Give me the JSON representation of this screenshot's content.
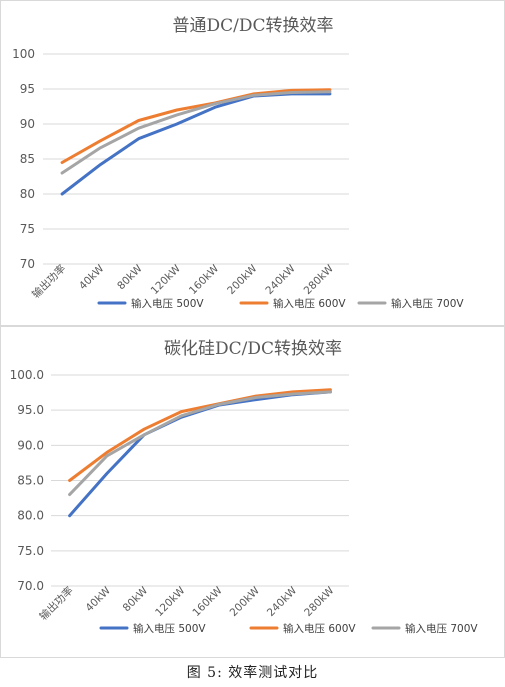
{
  "chart_data": [
    {
      "type": "line",
      "title": "普通DC/DC转换效率",
      "ylim": [
        70,
        100
      ],
      "yticks": [
        "100",
        "95",
        "90",
        "85",
        "80",
        "75",
        "70"
      ],
      "yticks_values": [
        100,
        95,
        90,
        85,
        80,
        75,
        70
      ],
      "categories": [
        "输出功率",
        "40kW",
        "80kW",
        "120kW",
        "160kW",
        "200kW",
        "240kW",
        "280kW"
      ],
      "legend_position": "bottom",
      "grid": true,
      "series": [
        {
          "name": "输入电压 500V",
          "color": "#4472C4",
          "values": [
            80.0,
            84.2,
            87.9,
            90.0,
            92.4,
            94.0,
            94.3,
            94.3
          ]
        },
        {
          "name": "输入电压 600V",
          "color": "#ED7D31",
          "values": [
            84.5,
            87.6,
            90.5,
            92.0,
            93.0,
            94.3,
            94.8,
            94.9
          ]
        },
        {
          "name": "输入电压 700V",
          "color": "#A5A5A5",
          "values": [
            83.0,
            86.6,
            89.4,
            91.3,
            92.9,
            94.1,
            94.5,
            94.6
          ]
        }
      ]
    },
    {
      "type": "line",
      "title": "碳化硅DC/DC转换效率",
      "ylim": [
        70,
        100
      ],
      "yticks": [
        "100.0",
        "95.0",
        "90.0",
        "85.0",
        "80.0",
        "75.0",
        "70.0"
      ],
      "yticks_values": [
        100,
        95,
        90,
        85,
        80,
        75,
        70
      ],
      "categories": [
        "输出功率",
        "40kW",
        "80kW",
        "120kW",
        "160kW",
        "200kW",
        "240kW",
        "280kW"
      ],
      "legend_position": "bottom",
      "grid": true,
      "series": [
        {
          "name": "输入电压 500V",
          "color": "#4472C4",
          "values": [
            80.0,
            86.0,
            91.5,
            94.0,
            95.7,
            96.5,
            97.2,
            97.6
          ]
        },
        {
          "name": "输入电压 600V",
          "color": "#ED7D31",
          "values": [
            85.0,
            89.0,
            92.3,
            94.8,
            95.9,
            97.0,
            97.6,
            97.9
          ]
        },
        {
          "name": "输入电压 700V",
          "color": "#A5A5A5",
          "values": [
            83.0,
            88.5,
            91.5,
            94.2,
            95.8,
            96.8,
            97.3,
            97.6
          ]
        }
      ]
    }
  ],
  "caption": "图 5: 效率测试对比"
}
